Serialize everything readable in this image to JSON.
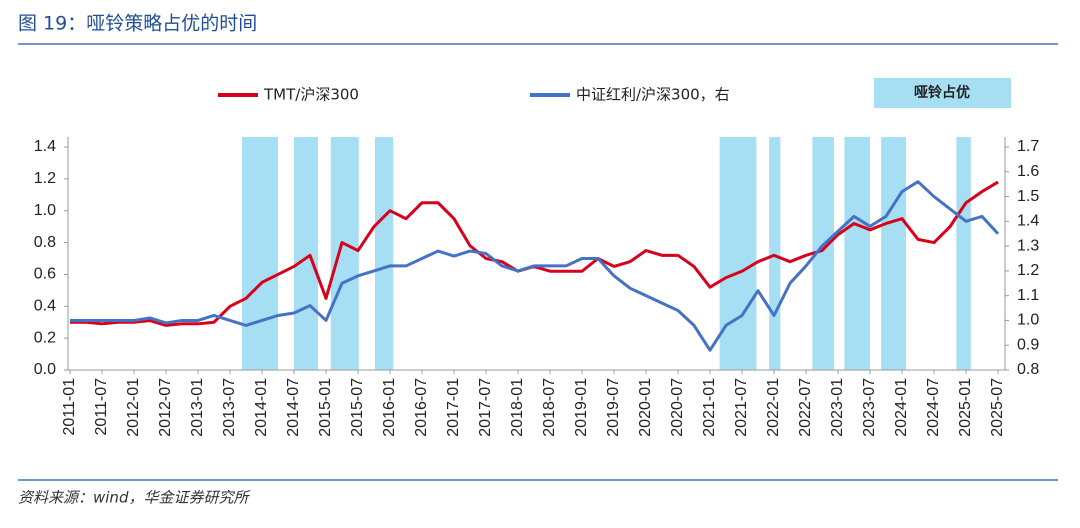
{
  "title": "图 19：哑铃策略占优的时间",
  "source": "资料来源：wind，华金证券研究所",
  "chart_data": {
    "type": "line",
    "categories": [
      "2011-01",
      null,
      "2011-07",
      null,
      "2012-01",
      null,
      "2012-07",
      null,
      "2013-01",
      null,
      "2013-07",
      null,
      "2014-01",
      null,
      "2014-07",
      null,
      "2015-01",
      null,
      "2015-07",
      null,
      "2016-01",
      null,
      "2016-07",
      null,
      "2017-01",
      null,
      "2017-07",
      null,
      "2018-01",
      null,
      "2018-07",
      null,
      "2019-01",
      null,
      "2019-07",
      null,
      "2020-01",
      null,
      "2020-07",
      null,
      "2021-01",
      null,
      "2021-07",
      null,
      "2022-01",
      null,
      "2022-07",
      null,
      "2023-01",
      null,
      "2023-07",
      null,
      "2024-01",
      null,
      "2024-07",
      null,
      "2025-01",
      null,
      "2025-07"
    ],
    "series": [
      {
        "name": "TMT/沪深300",
        "color": "#d9001b",
        "axis": "y",
        "values": [
          0.3,
          0.3,
          0.29,
          0.3,
          0.3,
          0.31,
          0.28,
          0.29,
          0.29,
          0.3,
          0.4,
          0.45,
          0.55,
          0.6,
          0.65,
          0.72,
          0.45,
          0.8,
          0.75,
          0.9,
          1.0,
          0.95,
          1.05,
          1.05,
          0.95,
          0.78,
          0.7,
          0.68,
          0.62,
          0.65,
          0.62,
          0.62,
          0.62,
          0.7,
          0.65,
          0.68,
          0.75,
          0.72,
          0.72,
          0.65,
          0.52,
          0.58,
          0.62,
          0.68,
          0.72,
          0.68,
          0.72,
          0.75,
          0.85,
          0.92,
          0.88,
          0.92,
          0.95,
          0.82,
          0.8,
          0.9,
          1.05,
          1.12,
          1.18
        ]
      },
      {
        "name": "中证红利/沪深300，右",
        "color": "#4472c4",
        "axis": "y2",
        "values": [
          1.0,
          1.0,
          1.0,
          1.0,
          1.0,
          1.01,
          0.99,
          1.0,
          1.0,
          1.02,
          1.0,
          0.98,
          1.0,
          1.02,
          1.03,
          1.06,
          1.0,
          1.15,
          1.18,
          1.2,
          1.22,
          1.22,
          1.25,
          1.28,
          1.26,
          1.28,
          1.27,
          1.22,
          1.2,
          1.22,
          1.22,
          1.22,
          1.25,
          1.25,
          1.18,
          1.13,
          1.1,
          1.07,
          1.04,
          0.98,
          0.88,
          0.98,
          1.02,
          1.12,
          1.02,
          1.15,
          1.22,
          1.3,
          1.36,
          1.42,
          1.38,
          1.42,
          1.52,
          1.56,
          1.5,
          1.45,
          1.4,
          1.42,
          1.35
        ]
      }
    ],
    "highlight": {
      "name": "哑铃占优",
      "color": "#a6def3",
      "periods": [
        [
          10.75,
          13.0
        ],
        [
          14.0,
          15.5
        ],
        [
          16.3,
          18.05
        ],
        [
          19.06,
          20.2
        ],
        [
          40.6,
          42.9
        ],
        [
          43.7,
          44.4
        ],
        [
          46.4,
          47.75
        ],
        [
          48.4,
          50.0
        ],
        [
          50.7,
          52.25
        ],
        [
          55.4,
          56.3
        ]
      ]
    },
    "ylim": [
      0,
      1.4
    ],
    "yticks": [
      {
        "value": 0,
        "label": "0.0"
      },
      0.2,
      0.4,
      0.6,
      0.8,
      {
        "value": 1,
        "label": "1.0"
      },
      1.2,
      1.4
    ],
    "y2lim": [
      0.8,
      1.7
    ],
    "y2ticks": [
      0.8,
      0.9,
      {
        "value": 1,
        "label": "1.0"
      },
      1.1,
      1.2,
      1.3,
      1.4,
      1.5,
      1.6,
      1.7
    ]
  }
}
